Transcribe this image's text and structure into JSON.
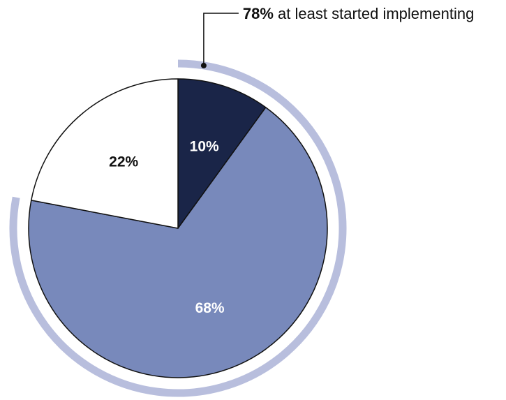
{
  "chart_data": {
    "type": "pie",
    "categories": [
      "",
      "",
      ""
    ],
    "values": [
      10,
      68,
      22
    ],
    "labels": [
      "10%",
      "68%",
      "22%"
    ],
    "colors": [
      "#1a2548",
      "#7889bb",
      "#ffffff"
    ],
    "label_colors": [
      "#ffffff",
      "#ffffff",
      "#111111"
    ],
    "start_angle_deg": 0,
    "direction": "clockwise",
    "annotation": {
      "bold": "78%",
      "text": " at least started implementing",
      "arc_color": "#b8bedd",
      "covers_slices": [
        0,
        1
      ]
    }
  }
}
